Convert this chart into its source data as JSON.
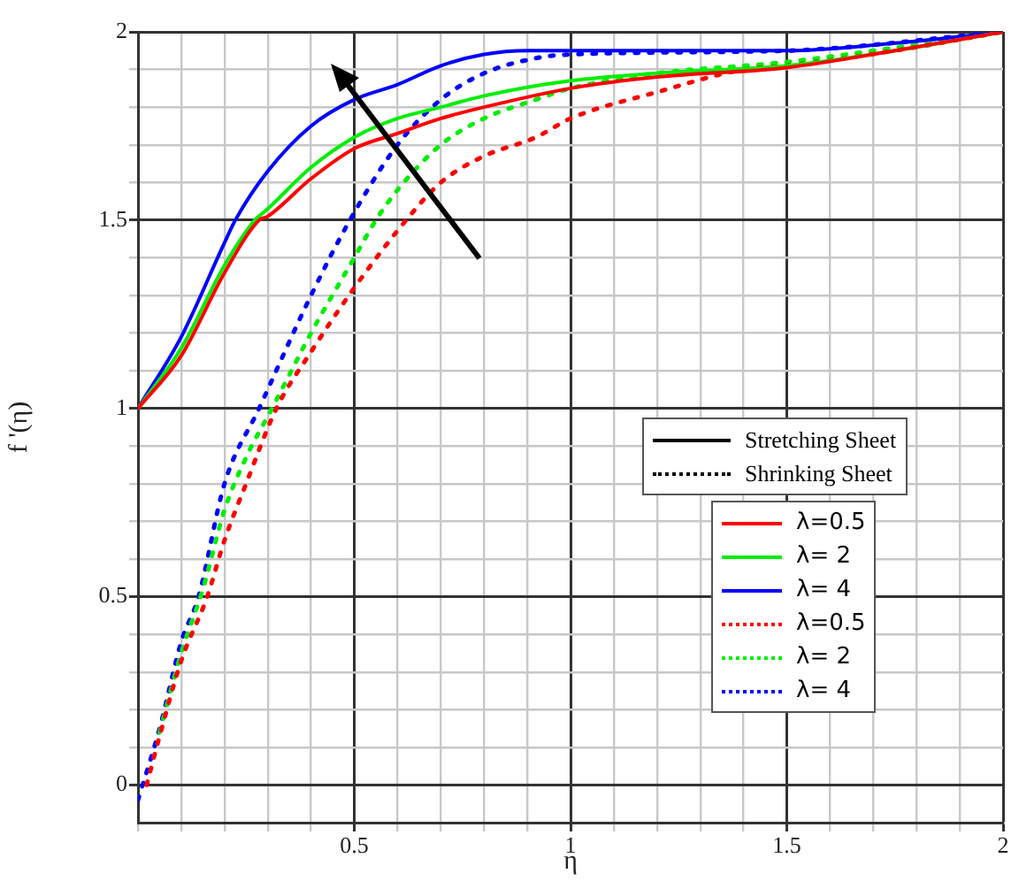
{
  "chart_data": {
    "type": "line",
    "xlabel": "η",
    "ylabel": "f '(η)",
    "xlim": [
      0,
      2
    ],
    "ylim": [
      -0.1,
      2
    ],
    "xticks": [
      {
        "value": 0,
        "label": null
      },
      {
        "value": 0.1,
        "label": null
      },
      {
        "value": 0.2,
        "label": null
      },
      {
        "value": 0.3,
        "label": null
      },
      {
        "value": 0.4,
        "label": null
      },
      0.5,
      {
        "value": 0.6,
        "label": null
      },
      {
        "value": 0.7,
        "label": null
      },
      {
        "value": 0.8,
        "label": null
      },
      {
        "value": 0.9,
        "label": null
      },
      1,
      {
        "value": 1.1,
        "label": null
      },
      {
        "value": 1.2,
        "label": null
      },
      {
        "value": 1.3,
        "label": null
      },
      {
        "value": 1.4,
        "label": null
      },
      1.5,
      {
        "value": 1.6,
        "label": null
      },
      {
        "value": 1.7,
        "label": null
      },
      {
        "value": 1.8,
        "label": null
      },
      {
        "value": 1.9,
        "label": null
      },
      2
    ],
    "yticks": [
      0,
      {
        "value": 0.1,
        "label": null
      },
      {
        "value": 0.2,
        "label": null
      },
      {
        "value": 0.3,
        "label": null
      },
      {
        "value": 0.4,
        "label": null
      },
      0.5,
      {
        "value": 0.6,
        "label": null
      },
      {
        "value": 0.7,
        "label": null
      },
      {
        "value": 0.8,
        "label": null
      },
      {
        "value": 0.9,
        "label": null
      },
      1,
      {
        "value": 1.1,
        "label": null
      },
      {
        "value": 1.2,
        "label": null
      },
      {
        "value": 1.3,
        "label": null
      },
      {
        "value": 1.4,
        "label": null
      },
      1.5,
      {
        "value": 1.6,
        "label": null
      },
      {
        "value": 1.7,
        "label": null
      },
      {
        "value": 1.8,
        "label": null
      },
      {
        "value": 1.9,
        "label": null
      },
      2
    ],
    "grid": true,
    "legend": "right",
    "marker": "none",
    "annotations": [
      "Stretching Sheet",
      "Shrinking Sheet"
    ],
    "series": [
      {
        "name": "λ=0.5",
        "color": "#ff0000",
        "line_style": "solid",
        "x": [
          0,
          0.1,
          0.2,
          0.28,
          0.3,
          0.4,
          0.5,
          0.6,
          0.7,
          0.8,
          1,
          1.2,
          1.5,
          1.75,
          2
        ],
        "values": [
          1,
          1.14,
          1.36,
          1.5,
          1.51,
          1.61,
          1.69,
          1.73,
          1.77,
          1.8,
          1.85,
          1.88,
          1.905,
          1.95,
          2
        ]
      },
      {
        "name": "λ= 2",
        "color": "#00ee00",
        "line_style": "solid",
        "x": [
          0,
          0.1,
          0.2,
          0.27,
          0.3,
          0.4,
          0.5,
          0.6,
          0.7,
          0.8,
          1,
          1.2,
          1.5,
          1.75,
          2
        ],
        "values": [
          1,
          1.16,
          1.38,
          1.5,
          1.53,
          1.64,
          1.72,
          1.77,
          1.8,
          1.83,
          1.87,
          1.89,
          1.91,
          1.95,
          2
        ]
      },
      {
        "name": "λ= 4",
        "color": "#0000ff",
        "line_style": "solid",
        "x": [
          0,
          0.1,
          0.2,
          0.225,
          0.3,
          0.4,
          0.5,
          0.6,
          0.7,
          0.8,
          0.9,
          1.5,
          1.75,
          2
        ],
        "values": [
          1,
          1.19,
          1.44,
          1.5,
          1.63,
          1.75,
          1.82,
          1.86,
          1.91,
          1.94,
          1.95,
          1.95,
          1.97,
          2
        ]
      },
      {
        "name": "λ=0.5",
        "color": "#ff0000",
        "line_style": "dotted",
        "x": [
          0.02,
          0.05,
          0.1,
          0.16,
          0.2,
          0.25,
          0.32,
          0.4,
          0.5,
          0.62,
          0.7,
          0.8,
          0.92,
          1,
          1.2,
          1.4,
          1.5,
          1.75,
          2
        ],
        "values": [
          0,
          0.13,
          0.33,
          0.5,
          0.65,
          0.8,
          1,
          1.15,
          1.32,
          1.5,
          1.6,
          1.67,
          1.72,
          1.77,
          1.84,
          1.9,
          1.91,
          1.95,
          2
        ]
      },
      {
        "name": "λ= 2",
        "color": "#00ee00",
        "line_style": "dotted",
        "x": [
          0.05,
          0.1,
          0.15,
          0.2,
          0.25,
          0.31,
          0.4,
          0.5,
          0.55,
          0.6,
          0.7,
          0.8,
          0.92,
          1,
          1.2,
          1.5,
          2
        ],
        "values": [
          0.14,
          0.35,
          0.52,
          0.73,
          0.87,
          1,
          1.2,
          1.4,
          1.5,
          1.58,
          1.7,
          1.77,
          1.82,
          1.85,
          1.89,
          1.92,
          2
        ]
      },
      {
        "name": "λ= 4",
        "color": "#0000ff",
        "line_style": "dotted",
        "x": [
          0,
          0.05,
          0.1,
          0.14,
          0.2,
          0.28,
          0.4,
          0.49,
          0.6,
          0.7,
          0.8,
          0.92,
          1,
          1.5,
          2
        ],
        "values": [
          -0.04,
          0.15,
          0.38,
          0.5,
          0.8,
          1,
          1.3,
          1.5,
          1.7,
          1.82,
          1.89,
          1.93,
          1.94,
          1.95,
          2
        ]
      }
    ]
  }
}
